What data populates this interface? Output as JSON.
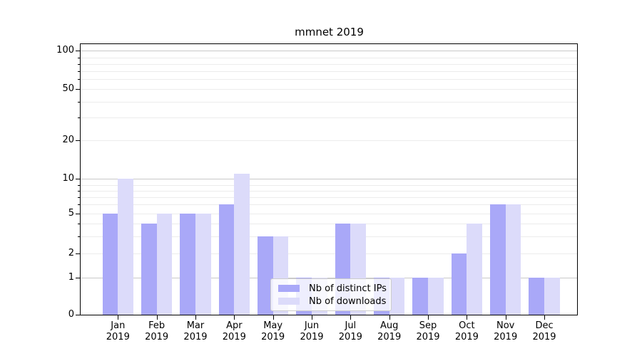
{
  "chart_data": {
    "type": "bar",
    "title": "mmnet 2019",
    "categories": [
      {
        "month": "Jan",
        "year": "2019"
      },
      {
        "month": "Feb",
        "year": "2019"
      },
      {
        "month": "Mar",
        "year": "2019"
      },
      {
        "month": "Apr",
        "year": "2019"
      },
      {
        "month": "May",
        "year": "2019"
      },
      {
        "month": "Jun",
        "year": "2019"
      },
      {
        "month": "Jul",
        "year": "2019"
      },
      {
        "month": "Aug",
        "year": "2019"
      },
      {
        "month": "Sep",
        "year": "2019"
      },
      {
        "month": "Oct",
        "year": "2019"
      },
      {
        "month": "Nov",
        "year": "2019"
      },
      {
        "month": "Dec",
        "year": "2019"
      }
    ],
    "series": [
      {
        "name": "Nb of distinct IPs",
        "color": "#a9a8f8",
        "values": [
          5,
          4,
          5,
          6,
          3,
          1,
          4,
          1,
          1,
          2,
          6,
          1
        ]
      },
      {
        "name": "Nb of downloads",
        "color": "#dcdbfa",
        "values": [
          10,
          5,
          5,
          11,
          3,
          1,
          4,
          1,
          1,
          4,
          6,
          1
        ]
      }
    ],
    "y_axis": {
      "scale": "log-like",
      "tick_labels": [
        "0",
        "1",
        "2",
        "5",
        "10",
        "20",
        "50",
        "100"
      ],
      "tick_values": [
        0,
        1,
        2,
        5,
        10,
        20,
        50,
        100
      ]
    },
    "legend": {
      "position": "inside-bottom-center"
    },
    "grid": true
  },
  "colors": {
    "minor_grid": "#ececec",
    "major_grid": "#c9c9c9",
    "spine": "#000000",
    "background": "#ffffff"
  }
}
